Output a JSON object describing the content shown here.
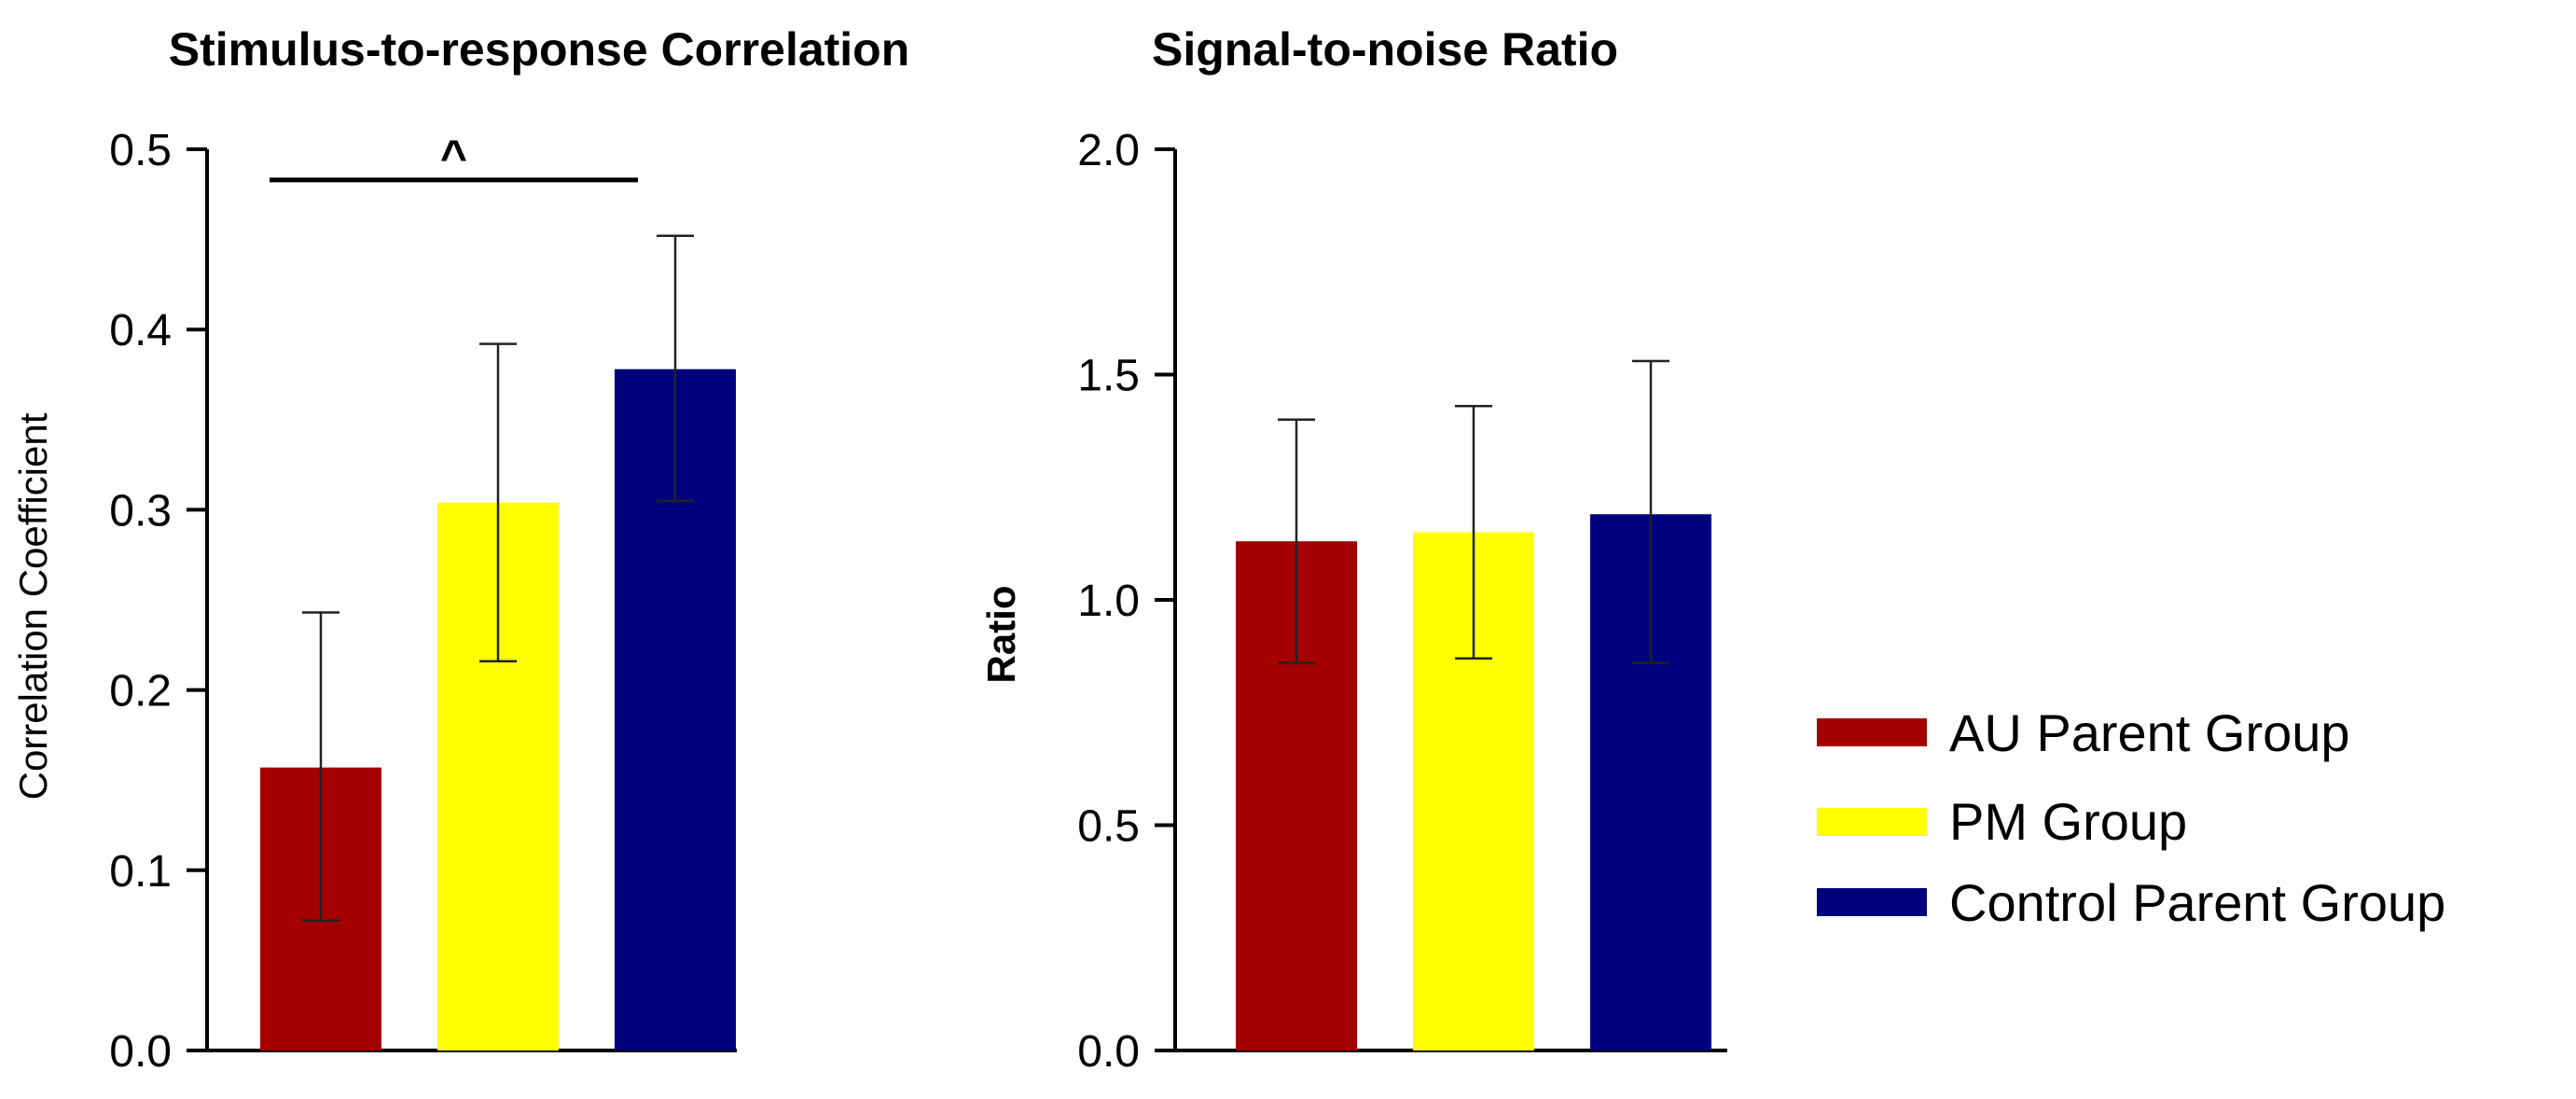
{
  "chart_data": [
    {
      "type": "bar",
      "title": "Stimulus-to-response Correlation",
      "ylabel": "Correlation Coefficient",
      "ylim": [
        0,
        0.5
      ],
      "yticks": [
        "0.0",
        "0.1",
        "0.2",
        "0.3",
        "0.4",
        "0.5"
      ],
      "categories": [
        "AU Parent Group",
        "PM Group",
        "Control Parent Group"
      ],
      "values": [
        0.157,
        0.304,
        0.378
      ],
      "error_low": [
        0.072,
        0.216,
        0.305
      ],
      "error_high": [
        0.243,
        0.392,
        0.452
      ],
      "colors": [
        "#a50000",
        "#ffff00",
        "#00007f"
      ],
      "significance": {
        "from": 0,
        "to": 2,
        "y": 0.483,
        "label": "^"
      },
      "grid": false
    },
    {
      "type": "bar",
      "title": "Signal-to-noise Ratio",
      "ylabel": "Ratio",
      "ylim": [
        0,
        2.0
      ],
      "yticks": [
        "0.0",
        "0.5",
        "1.0",
        "1.5",
        "2.0"
      ],
      "categories": [
        "AU Parent Group",
        "PM Group",
        "Control Parent Group"
      ],
      "values": [
        1.13,
        1.15,
        1.19
      ],
      "error_low": [
        0.86,
        0.87,
        0.86
      ],
      "error_high": [
        1.4,
        1.43,
        1.53
      ],
      "colors": [
        "#a50000",
        "#ffff00",
        "#00007f"
      ],
      "grid": false
    }
  ],
  "legend": {
    "position": "right",
    "items": [
      {
        "label": "AU Parent Group",
        "color": "#a50000"
      },
      {
        "label": "PM Group",
        "color": "#ffff00"
      },
      {
        "label": "Control Parent Group",
        "color": "#00007f"
      }
    ]
  }
}
